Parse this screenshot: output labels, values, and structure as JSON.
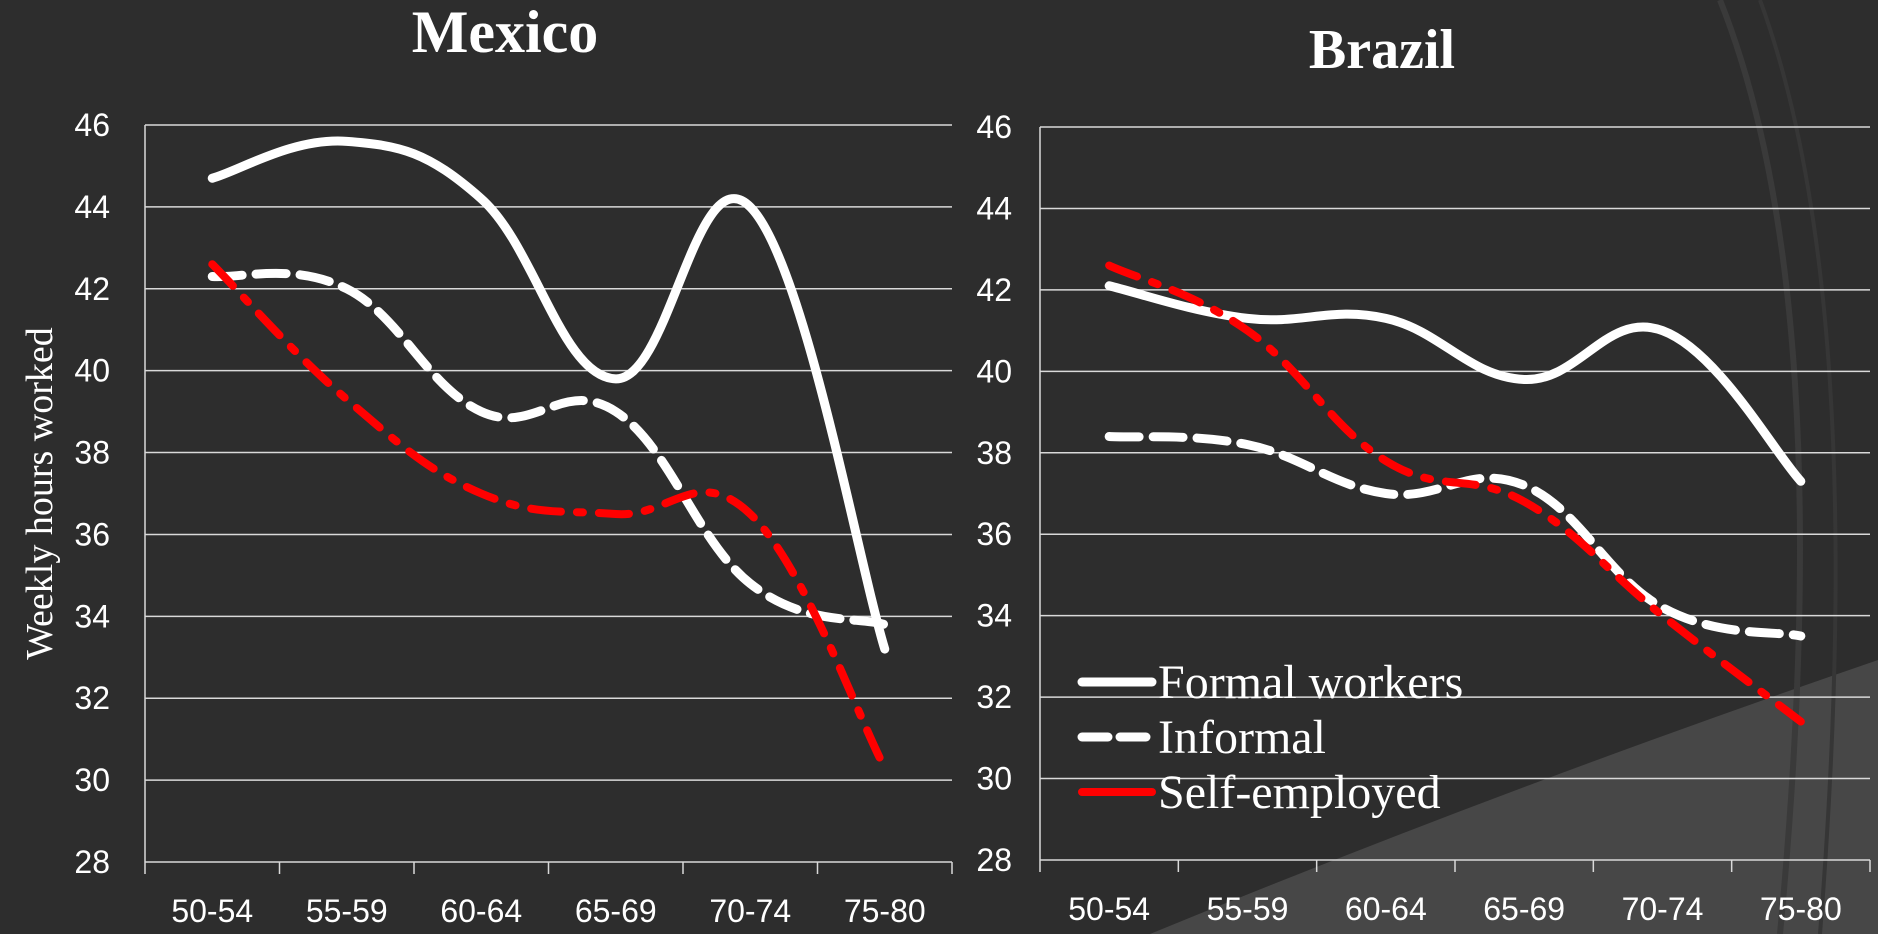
{
  "chart_data": [
    {
      "type": "line",
      "title": "Mexico",
      "ylabel": "Weekly hours  worked",
      "ylim": [
        28,
        46
      ],
      "yticks": [
        "28",
        "30",
        "32",
        "34",
        "36",
        "38",
        "40",
        "42",
        "44",
        "46"
      ],
      "categories": [
        "50-54",
        "55-59",
        "60-64",
        "65-69",
        "70-74",
        "75-80"
      ],
      "grid": true,
      "series": [
        {
          "name": "Formal workers",
          "style": "solid",
          "color": "#ffffff",
          "values": [
            44.7,
            45.6,
            44.2,
            39.8,
            44.0,
            33.2
          ]
        },
        {
          "name": "Informal",
          "style": "dashed",
          "color": "#ffffff",
          "values": [
            42.3,
            42.0,
            39.0,
            39.0,
            34.8,
            33.8
          ]
        },
        {
          "name": "Self-employed",
          "style": "dashdot",
          "color": "#ff0000",
          "values": [
            42.6,
            39.3,
            37.0,
            36.5,
            36.5,
            30.3
          ]
        }
      ]
    },
    {
      "type": "line",
      "title": "Brazil",
      "ylabel": "",
      "ylim": [
        28,
        46
      ],
      "yticks": [
        "28",
        "30",
        "32",
        "34",
        "36",
        "38",
        "40",
        "42",
        "44",
        "46"
      ],
      "categories": [
        "50-54",
        "55-59",
        "60-64",
        "65-69",
        "70-74",
        "75-80"
      ],
      "grid": true,
      "legend": "bottom-left",
      "series": [
        {
          "name": "Formal workers",
          "style": "solid",
          "color": "#ffffff",
          "values": [
            42.1,
            41.3,
            41.3,
            39.8,
            41.0,
            37.3
          ]
        },
        {
          "name": "Informal",
          "style": "dashed",
          "color": "#ffffff",
          "values": [
            38.4,
            38.2,
            37.0,
            37.2,
            34.2,
            33.5
          ]
        },
        {
          "name": "Self-employed",
          "style": "dashdot",
          "color": "#ff0000",
          "values": [
            42.6,
            41.0,
            37.8,
            36.8,
            34.0,
            31.4
          ]
        }
      ]
    }
  ],
  "legend": {
    "items": [
      {
        "label": "Formal workers",
        "style": "solid",
        "color": "#ffffff"
      },
      {
        "label": "Informal",
        "style": "dashed",
        "color": "#ffffff"
      },
      {
        "label": "Self-employed",
        "style": "dashdot",
        "color": "#ff0000"
      }
    ]
  }
}
